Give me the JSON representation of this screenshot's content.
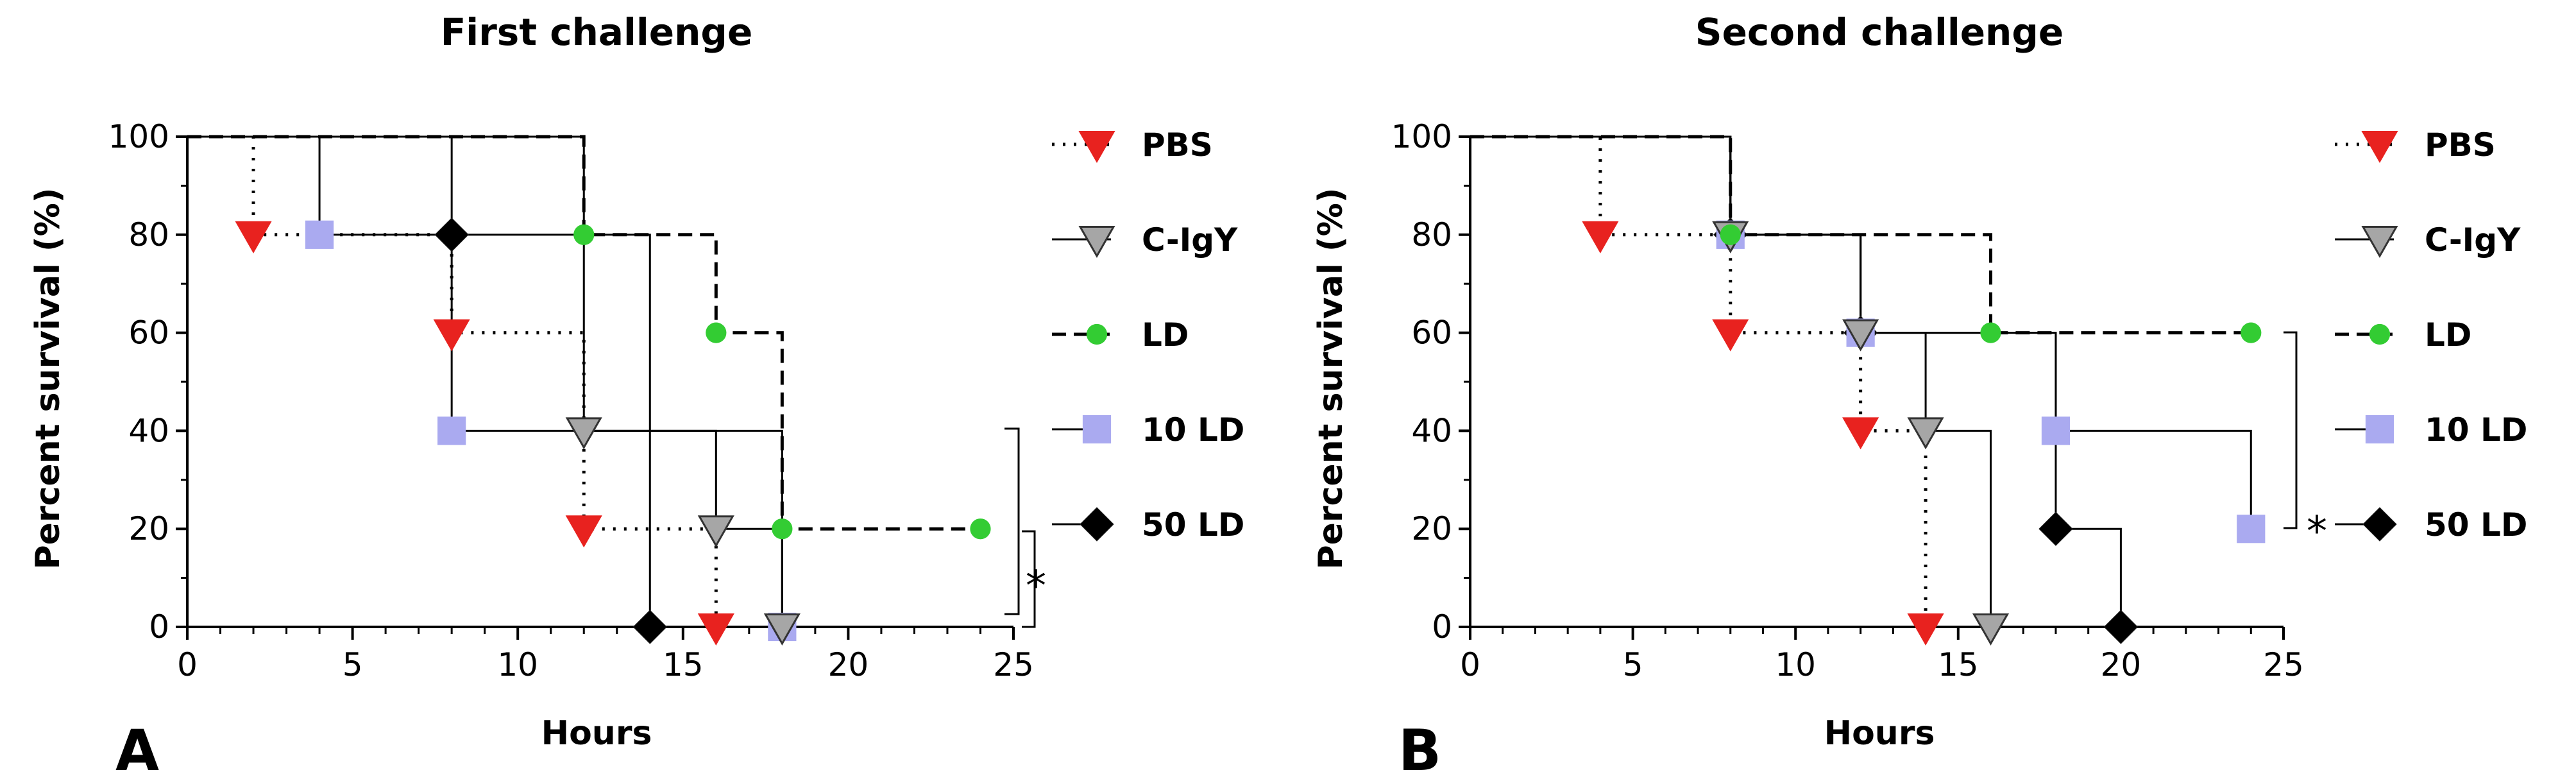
{
  "chart_data": [
    {
      "type": "line",
      "subtype": "kaplan-meier survival",
      "panel_label": "A",
      "title": "First challenge",
      "xlabel": "Hours",
      "ylabel": "Percent survival (%)",
      "xlim": [
        0,
        25
      ],
      "ylim": [
        0,
        100
      ],
      "xticks": [
        0,
        5,
        10,
        15,
        20,
        25
      ],
      "yticks": [
        0,
        20,
        40,
        60,
        80,
        100
      ],
      "significance": "*",
      "series": [
        {
          "name": "PBS",
          "color": "#e8221f",
          "marker": "triangle-down",
          "line": "dotted",
          "steps": [
            [
              0,
              100
            ],
            [
              2,
              80
            ],
            [
              8,
              60
            ],
            [
              12,
              20
            ],
            [
              16,
              0
            ]
          ]
        },
        {
          "name": "C-IgY",
          "color": "#a6a6a6",
          "marker": "triangle-down",
          "line": "solid",
          "steps": [
            [
              0,
              100
            ],
            [
              12,
              40
            ],
            [
              16,
              20
            ],
            [
              18,
              0
            ]
          ]
        },
        {
          "name": "LD",
          "color": "#33cc33",
          "marker": "circle",
          "line": "dashed",
          "steps": [
            [
              0,
              100
            ],
            [
              12,
              80
            ],
            [
              16,
              60
            ],
            [
              18,
              20
            ]
          ],
          "end": [
            24,
            20
          ]
        },
        {
          "name": "10 LD",
          "color": "#aaaaf0",
          "marker": "square",
          "line": "solid",
          "steps": [
            [
              0,
              100
            ],
            [
              4,
              80
            ],
            [
              8,
              40
            ],
            [
              18,
              0
            ]
          ]
        },
        {
          "name": "50 LD",
          "color": "#000000",
          "marker": "diamond",
          "line": "solid",
          "steps": [
            [
              0,
              100
            ],
            [
              8,
              80
            ],
            [
              14,
              0
            ]
          ]
        }
      ]
    },
    {
      "type": "line",
      "subtype": "kaplan-meier survival",
      "panel_label": "B",
      "title": "Second challenge",
      "xlabel": "Hours",
      "ylabel": "Percent survival (%)",
      "xlim": [
        0,
        25
      ],
      "ylim": [
        0,
        100
      ],
      "xticks": [
        0,
        5,
        10,
        15,
        20,
        25
      ],
      "yticks": [
        0,
        20,
        40,
        60,
        80,
        100
      ],
      "significance": "*",
      "series": [
        {
          "name": "PBS",
          "color": "#e8221f",
          "marker": "triangle-down",
          "line": "dotted",
          "steps": [
            [
              0,
              100
            ],
            [
              4,
              80
            ],
            [
              8,
              60
            ],
            [
              12,
              40
            ],
            [
              14,
              0
            ]
          ]
        },
        {
          "name": "C-IgY",
          "color": "#a6a6a6",
          "marker": "triangle-down",
          "line": "solid",
          "steps": [
            [
              0,
              100
            ],
            [
              8,
              80
            ],
            [
              12,
              60
            ],
            [
              14,
              40
            ],
            [
              16,
              0
            ]
          ]
        },
        {
          "name": "LD",
          "color": "#33cc33",
          "marker": "circle",
          "line": "dashed",
          "steps": [
            [
              0,
              100
            ],
            [
              8,
              80
            ],
            [
              16,
              60
            ]
          ],
          "end": [
            24,
            60
          ]
        },
        {
          "name": "10 LD",
          "color": "#aaaaf0",
          "marker": "square",
          "line": "solid",
          "steps": [
            [
              0,
              100
            ],
            [
              8,
              80
            ],
            [
              12,
              60
            ],
            [
              18,
              40
            ],
            [
              24,
              20
            ]
          ]
        },
        {
          "name": "50 LD",
          "color": "#000000",
          "marker": "diamond",
          "line": "solid",
          "steps": [
            [
              0,
              100
            ],
            [
              8,
              80
            ],
            [
              12,
              60
            ],
            [
              18,
              20
            ],
            [
              20,
              0
            ]
          ]
        }
      ]
    }
  ]
}
